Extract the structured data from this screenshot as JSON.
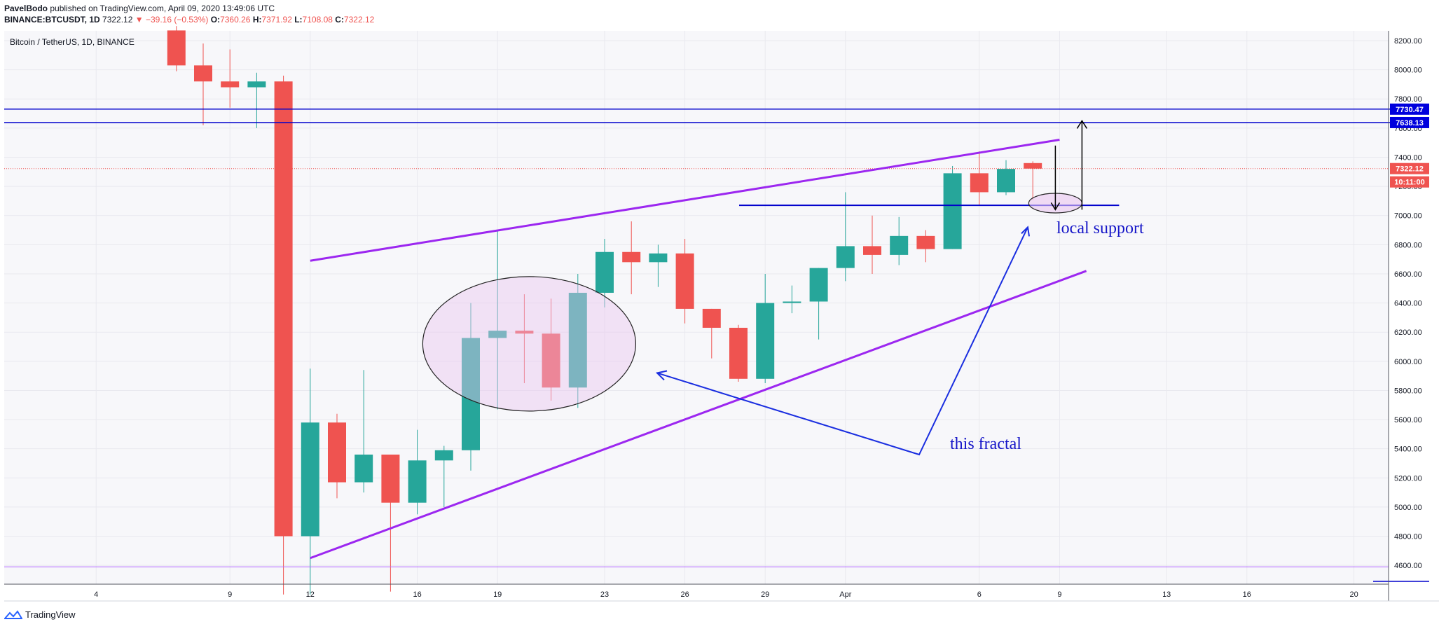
{
  "header": {
    "author": "PavelBodo",
    "published_text": "published on TradingView.com, April 09, 2020 13:49:06 UTC",
    "symbol": "BINANCE:BTCUSDT, 1D",
    "last": "7322.12",
    "change": "−39.16 (−0.53%)",
    "o_label": "O:",
    "o": "7360.26",
    "h_label": "H:",
    "h": "7371.92",
    "l_label": "L:",
    "l": "7108.08",
    "c_label": "C:",
    "c": "7322.12"
  },
  "footer": {
    "brand": "TradingView"
  },
  "colors": {
    "up": "#26a69a",
    "down": "#ef5350",
    "trend": "#9c27f0",
    "level": "#0000cc",
    "arrow": "#1a2ee0",
    "annot_text": "#1515c8"
  },
  "chart_data": {
    "type": "candlestick",
    "title": "Bitcoin / TetherUS, 1D, BINANCE",
    "ylim": [
      4400,
      8300
    ],
    "y_ticks": [
      "8200.00",
      "8000.00",
      "7800.00",
      "7600.00",
      "7400.00",
      "7200.00",
      "7000.00",
      "6800.00",
      "6600.00",
      "6400.00",
      "6200.00",
      "6000.00",
      "5800.00",
      "5600.00",
      "5400.00",
      "5200.00",
      "5000.00",
      "4800.00",
      "4600.00"
    ],
    "x_ticks": [
      {
        "label": "4",
        "i": -4
      },
      {
        "label": "9",
        "i": 1
      },
      {
        "label": "12",
        "i": 4
      },
      {
        "label": "16",
        "i": 8
      },
      {
        "label": "19",
        "i": 11
      },
      {
        "label": "23",
        "i": 15
      },
      {
        "label": "26",
        "i": 18
      },
      {
        "label": "29",
        "i": 21
      },
      {
        "label": "Apr",
        "i": 24
      },
      {
        "label": "6",
        "i": 29
      },
      {
        "label": "9",
        "i": 32
      },
      {
        "label": "13",
        "i": 36
      },
      {
        "label": "16",
        "i": 39
      },
      {
        "label": "20",
        "i": 43
      }
    ],
    "candles": [
      {
        "i": -1,
        "o": 8270,
        "h": 8300,
        "l": 7990,
        "c": 8030
      },
      {
        "i": 0,
        "o": 8030,
        "h": 8180,
        "l": 7620,
        "c": 7920
      },
      {
        "i": 1,
        "o": 7920,
        "h": 8140,
        "l": 7740,
        "c": 7880
      },
      {
        "i": 2,
        "o": 7880,
        "h": 7980,
        "l": 7600,
        "c": 7920
      },
      {
        "i": 3,
        "o": 7920,
        "h": 7960,
        "l": 4400,
        "c": 4800
      },
      {
        "i": 4,
        "o": 4800,
        "h": 5950,
        "l": 4400,
        "c": 5580
      },
      {
        "i": 5,
        "o": 5580,
        "h": 5640,
        "l": 5060,
        "c": 5170
      },
      {
        "i": 6,
        "o": 5170,
        "h": 5940,
        "l": 5100,
        "c": 5360
      },
      {
        "i": 7,
        "o": 5360,
        "h": 5360,
        "l": 4420,
        "c": 5030
      },
      {
        "i": 8,
        "o": 5030,
        "h": 5530,
        "l": 4950,
        "c": 5320
      },
      {
        "i": 9,
        "o": 5320,
        "h": 5420,
        "l": 5000,
        "c": 5390
      },
      {
        "i": 10,
        "o": 5390,
        "h": 6400,
        "l": 5250,
        "c": 6160
      },
      {
        "i": 11,
        "o": 6160,
        "h": 6900,
        "l": 5670,
        "c": 6210
      },
      {
        "i": 12,
        "o": 6210,
        "h": 6460,
        "l": 5850,
        "c": 6190
      },
      {
        "i": 13,
        "o": 6190,
        "h": 6430,
        "l": 5730,
        "c": 5820
      },
      {
        "i": 14,
        "o": 5820,
        "h": 6600,
        "l": 5680,
        "c": 6470
      },
      {
        "i": 15,
        "o": 6470,
        "h": 6840,
        "l": 6370,
        "c": 6750
      },
      {
        "i": 16,
        "o": 6750,
        "h": 6960,
        "l": 6460,
        "c": 6680
      },
      {
        "i": 17,
        "o": 6680,
        "h": 6800,
        "l": 6510,
        "c": 6740
      },
      {
        "i": 18,
        "o": 6740,
        "h": 6840,
        "l": 6260,
        "c": 6360
      },
      {
        "i": 19,
        "o": 6360,
        "h": 6360,
        "l": 6020,
        "c": 6230
      },
      {
        "i": 20,
        "o": 6230,
        "h": 6250,
        "l": 5860,
        "c": 5880
      },
      {
        "i": 21,
        "o": 5880,
        "h": 6600,
        "l": 5850,
        "c": 6400
      },
      {
        "i": 22,
        "o": 6400,
        "h": 6520,
        "l": 6330,
        "c": 6410
      },
      {
        "i": 23,
        "o": 6410,
        "h": 6640,
        "l": 6150,
        "c": 6640
      },
      {
        "i": 24,
        "o": 6640,
        "h": 7160,
        "l": 6550,
        "c": 6790
      },
      {
        "i": 25,
        "o": 6790,
        "h": 7000,
        "l": 6600,
        "c": 6730
      },
      {
        "i": 26,
        "o": 6730,
        "h": 6990,
        "l": 6660,
        "c": 6860
      },
      {
        "i": 27,
        "o": 6860,
        "h": 6900,
        "l": 6680,
        "c": 6770
      },
      {
        "i": 28,
        "o": 6770,
        "h": 7340,
        "l": 6770,
        "c": 7290
      },
      {
        "i": 29,
        "o": 7290,
        "h": 7440,
        "l": 7070,
        "c": 7160
      },
      {
        "i": 30,
        "o": 7160,
        "h": 7380,
        "l": 7140,
        "c": 7320
      },
      {
        "i": 31,
        "o": 7360,
        "h": 7372,
        "l": 7108,
        "c": 7322
      }
    ],
    "price_tags": [
      {
        "label": "7730.47",
        "value": 7730,
        "bg": "#0000dd"
      },
      {
        "label": "7638.13",
        "value": 7638,
        "bg": "#0000dd"
      },
      {
        "label": "7322.12",
        "value": 7322,
        "bg": "#ef5350"
      },
      {
        "label": "10:11:00",
        "value": 7198,
        "bg": "#ef5350"
      }
    ],
    "annotations": {
      "local_support": "local support",
      "this_fractal": "this fractal"
    }
  }
}
